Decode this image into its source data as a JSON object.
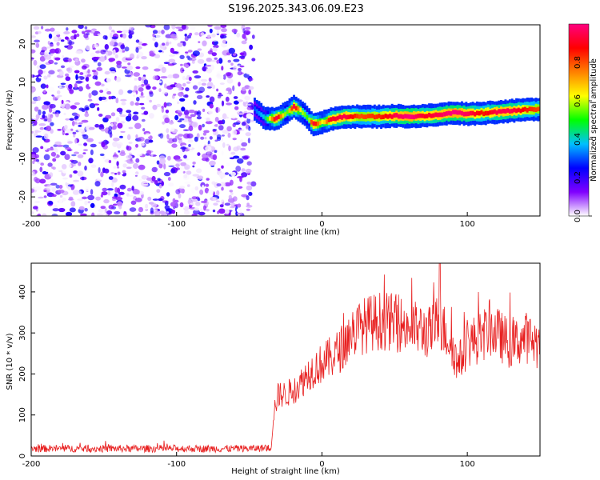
{
  "title": "S196.2025.343.06.09.E23",
  "chart_data": [
    {
      "type": "heatmap",
      "name": "spectrogram",
      "xlabel": "Height of straight line (km)",
      "ylabel": "Frequency (Hz)",
      "xlim": [
        -200,
        150
      ],
      "ylim": [
        -25,
        25
      ],
      "xticks": [
        -200,
        -100,
        0,
        100
      ],
      "xtick_labels": [
        "-200",
        "-100",
        "0",
        "100"
      ],
      "yticks": [
        -20,
        -10,
        0,
        10,
        20
      ],
      "ytick_labels": [
        "-20",
        "-10",
        "0",
        "10",
        "20"
      ],
      "noise_region_x": [
        -200,
        -47
      ],
      "noise_amplitude_range": [
        0.0,
        0.25
      ],
      "signal_start_x": -47,
      "ridge": [
        {
          "x": -47,
          "f": 3.0,
          "a": 0.3
        },
        {
          "x": -40,
          "f": 0.5,
          "a": 0.4
        },
        {
          "x": -32,
          "f": 0.5,
          "a": 0.95
        },
        {
          "x": -25,
          "f": 2.0,
          "a": 0.5
        },
        {
          "x": -20,
          "f": 3.5,
          "a": 0.95
        },
        {
          "x": -15,
          "f": 2.5,
          "a": 0.6
        },
        {
          "x": -10,
          "f": 0.5,
          "a": 0.5
        },
        {
          "x": -7,
          "f": -1.0,
          "a": 0.95
        },
        {
          "x": 0,
          "f": -0.5,
          "a": 0.6
        },
        {
          "x": 5,
          "f": 0.2,
          "a": 0.9
        },
        {
          "x": 15,
          "f": 1.0,
          "a": 0.95
        },
        {
          "x": 25,
          "f": 1.0,
          "a": 0.8
        },
        {
          "x": 40,
          "f": 1.0,
          "a": 0.85
        },
        {
          "x": 50,
          "f": 1.2,
          "a": 0.95
        },
        {
          "x": 60,
          "f": 1.0,
          "a": 1.0
        },
        {
          "x": 70,
          "f": 1.2,
          "a": 0.9
        },
        {
          "x": 80,
          "f": 1.5,
          "a": 0.95
        },
        {
          "x": 90,
          "f": 2.0,
          "a": 1.0
        },
        {
          "x": 100,
          "f": 1.7,
          "a": 0.95
        },
        {
          "x": 110,
          "f": 1.9,
          "a": 0.85
        },
        {
          "x": 120,
          "f": 2.2,
          "a": 0.95
        },
        {
          "x": 130,
          "f": 2.5,
          "a": 0.95
        },
        {
          "x": 140,
          "f": 2.8,
          "a": 0.85
        },
        {
          "x": 150,
          "f": 3.0,
          "a": 0.8
        }
      ]
    },
    {
      "type": "colorbar",
      "name": "amplitude-colorbar",
      "label": "Normalized spectral amplitude",
      "range": [
        0.0,
        1.0
      ],
      "ticks": [
        0.0,
        0.2,
        0.4,
        0.6,
        0.8
      ],
      "tick_labels": [
        "0.0",
        "0.2",
        "0.4",
        "0.6",
        "0.8"
      ],
      "color_stops": [
        "#ffffff",
        "#8000ff",
        "#0000ff",
        "#00c0ff",
        "#00ff00",
        "#ffff00",
        "#ff8000",
        "#ff0000",
        "#ff0080"
      ]
    },
    {
      "type": "line",
      "name": "snr",
      "xlabel": "Height of straight line (km)",
      "ylabel": "SNR (10 * v/v)",
      "xlim": [
        -200,
        150
      ],
      "ylim": [
        0,
        470
      ],
      "xticks": [
        -200,
        -100,
        0,
        100
      ],
      "xtick_labels": [
        "-200",
        "-100",
        "0",
        "100"
      ],
      "yticks": [
        0,
        100,
        200,
        300,
        400
      ],
      "ytick_labels": [
        "0",
        "100",
        "200",
        "300",
        "400"
      ],
      "color": "#e82020",
      "envelope": [
        {
          "x": -200,
          "y": 18
        },
        {
          "x": -150,
          "y": 18
        },
        {
          "x": -100,
          "y": 18
        },
        {
          "x": -50,
          "y": 18
        },
        {
          "x": -35,
          "y": 20
        },
        {
          "x": -33,
          "y": 110
        },
        {
          "x": -30,
          "y": 150
        },
        {
          "x": -25,
          "y": 150
        },
        {
          "x": -20,
          "y": 160
        },
        {
          "x": -15,
          "y": 175
        },
        {
          "x": -10,
          "y": 200
        },
        {
          "x": -5,
          "y": 215
        },
        {
          "x": 0,
          "y": 225
        },
        {
          "x": 10,
          "y": 250
        },
        {
          "x": 15,
          "y": 270
        },
        {
          "x": 20,
          "y": 300
        },
        {
          "x": 25,
          "y": 310
        },
        {
          "x": 30,
          "y": 320
        },
        {
          "x": 40,
          "y": 330
        },
        {
          "x": 50,
          "y": 325
        },
        {
          "x": 60,
          "y": 315
        },
        {
          "x": 70,
          "y": 305
        },
        {
          "x": 75,
          "y": 300
        },
        {
          "x": 80,
          "y": 330
        },
        {
          "x": 85,
          "y": 300
        },
        {
          "x": 90,
          "y": 270
        },
        {
          "x": 93,
          "y": 220
        },
        {
          "x": 96,
          "y": 240
        },
        {
          "x": 100,
          "y": 275
        },
        {
          "x": 110,
          "y": 290
        },
        {
          "x": 115,
          "y": 310
        },
        {
          "x": 120,
          "y": 300
        },
        {
          "x": 130,
          "y": 270
        },
        {
          "x": 140,
          "y": 290
        },
        {
          "x": 150,
          "y": 270
        }
      ],
      "peak": {
        "x": 81,
        "y": 470
      }
    }
  ]
}
